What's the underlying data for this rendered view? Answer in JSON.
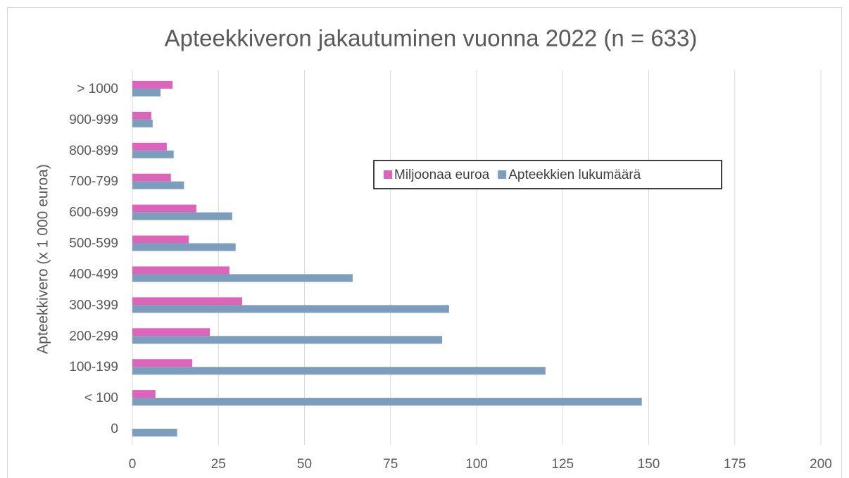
{
  "chart_data": {
    "type": "hbar",
    "title": "Apteekkiveron jakautuminen vuonna 2022 (n = 633)",
    "y_label": "Apteekkivero (x 1 000 euroa)",
    "categories": [
      "0",
      "< 100",
      "100-199",
      "200-299",
      "300-399",
      "400-499",
      "500-599",
      "600-699",
      "700-799",
      "800-899",
      "900-999",
      "> 1000"
    ],
    "series": [
      {
        "name": "Miljoonaa euroa",
        "color": "#dc64bb",
        "values": [
          0,
          6.7,
          17.4,
          22.5,
          31.9,
          28.2,
          16.4,
          18.6,
          11.2,
          10,
          5.5,
          11.7
        ]
      },
      {
        "name": "Apteekkien lukumäärä",
        "color": "#7d9dbd",
        "values": [
          13,
          148,
          120,
          90,
          92,
          64,
          30,
          29,
          15,
          12,
          5.9,
          8.2
        ]
      }
    ],
    "xlim": [
      0,
      200
    ],
    "xticks": [
      0,
      25,
      50,
      75,
      100,
      125,
      150,
      175,
      200
    ],
    "grid": true
  }
}
